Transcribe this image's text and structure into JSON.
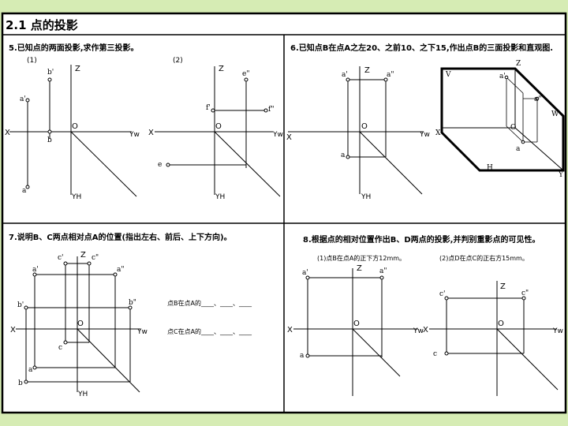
{
  "header": {
    "title": "2.1 点的投影"
  },
  "p5": {
    "title": "5.已知点的两面投影,求作第三投影。",
    "sub1": "(1)",
    "sub2": "(2)",
    "X": "X",
    "Z": "Z",
    "O": "O",
    "YW": "Yw",
    "YH": "YH",
    "pts": {
      "a1": "a'",
      "a": "a",
      "b1": "b'",
      "b": "b",
      "e2": "e\"",
      "f1": "f'",
      "f2": "f\"",
      "e": "e"
    }
  },
  "p6": {
    "title": "6.已知点B在点A之左20、之前10、之下15,作出点B的三面投影和直观图.",
    "X": "X",
    "Z": "Z",
    "O": "O",
    "YW": "Yw",
    "YH": "YH",
    "pts": {
      "a1": "a'",
      "a2": "a\"",
      "a": "a"
    },
    "box": {
      "V": "V",
      "Z": "Z",
      "a1": "a'",
      "a2": "a\"",
      "W": "W",
      "O": "O",
      "X": "X",
      "a": "a",
      "H": "H",
      "Y": "Y"
    }
  },
  "p7": {
    "title": "7.说明B、C两点相对点A的位置(指出左右、前后、上下方向)。",
    "X": "X",
    "Z": "Z",
    "O": "O",
    "YW": "Yw",
    "YH": "YH",
    "pts": {
      "c1": "c'",
      "c2": "c\"",
      "a1": "a'",
      "a2": "a\"",
      "b1": "b'",
      "b2": "b\"",
      "c": "c",
      "a": "a",
      "b": "b"
    },
    "q1": "点B在点A的____、____、____",
    "q2": "点C在点A的____、____、____"
  },
  "p8": {
    "title": "8.根据点的相对位置作出B、D两点的投影,并判别重影点的可见性。",
    "sub1": "(1)点B在点A的正下方12mm。",
    "sub2": "(2)点D在点C的正右方15mm。",
    "X": "X",
    "Z": "Z",
    "O": "O",
    "YW": "Yw",
    "pts": {
      "a1": "a'",
      "a2": "a\"",
      "a": "a",
      "c1": "c'",
      "c2": "c\"",
      "c": "c"
    }
  }
}
